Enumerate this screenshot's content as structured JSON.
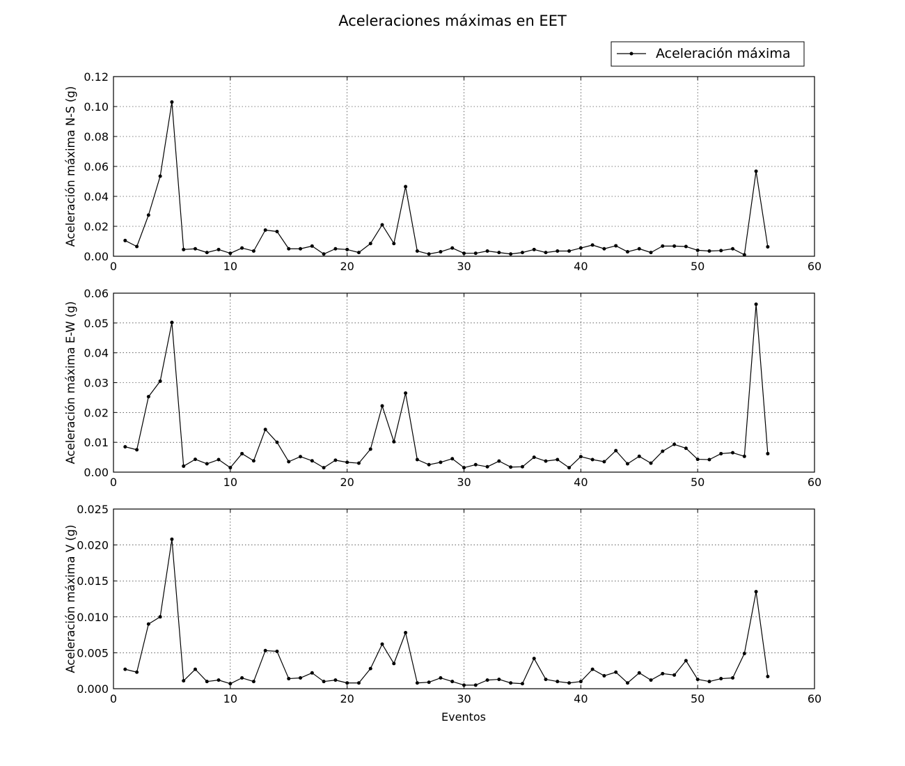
{
  "figure": {
    "title": "Aceleraciones máximas en EET",
    "xlabel": "Eventos",
    "legend": {
      "label": "Aceleración máxima",
      "placement": "top-right"
    },
    "line_color": "#000000"
  },
  "chart_data": [
    {
      "type": "line",
      "title": "",
      "xlabel": "",
      "ylabel": "Aceleración máxima N-S (g)",
      "xlim": [
        0,
        60
      ],
      "ylim": [
        0,
        0.12
      ],
      "xticks": [
        "0",
        "10",
        "20",
        "30",
        "40",
        "50",
        "60"
      ],
      "yticks": [
        "0.00",
        "0.02",
        "0.04",
        "0.06",
        "0.08",
        "0.10",
        "0.12"
      ],
      "grid": true,
      "series": [
        {
          "name": "Aceleración máxima",
          "x": [
            1,
            2,
            3,
            4,
            5,
            6,
            7,
            8,
            9,
            10,
            11,
            12,
            13,
            14,
            15,
            16,
            17,
            18,
            19,
            20,
            21,
            22,
            23,
            24,
            25,
            26,
            27,
            28,
            29,
            30,
            31,
            32,
            33,
            34,
            35,
            36,
            37,
            38,
            39,
            40,
            41,
            42,
            43,
            44,
            45,
            46,
            47,
            48,
            49,
            50,
            51,
            52,
            53,
            54,
            55,
            56
          ],
          "y": [
            0.0105,
            0.0065,
            0.0275,
            0.0535,
            0.103,
            0.0045,
            0.005,
            0.0025,
            0.0045,
            0.002,
            0.0055,
            0.0035,
            0.0175,
            0.0165,
            0.005,
            0.005,
            0.0068,
            0.0015,
            0.005,
            0.0045,
            0.0025,
            0.0085,
            0.021,
            0.0085,
            0.0465,
            0.0035,
            0.0015,
            0.003,
            0.0055,
            0.002,
            0.002,
            0.0035,
            0.0025,
            0.0015,
            0.0025,
            0.0045,
            0.0025,
            0.0035,
            0.0035,
            0.0055,
            0.0075,
            0.005,
            0.007,
            0.003,
            0.005,
            0.0025,
            0.0068,
            0.0068,
            0.0065,
            0.004,
            0.0035,
            0.0038,
            0.005,
            0.001,
            0.0568,
            0.0063
          ]
        }
      ]
    },
    {
      "type": "line",
      "title": "",
      "xlabel": "",
      "ylabel": "Aceleración máxima E-W (g)",
      "xlim": [
        0,
        60
      ],
      "ylim": [
        0,
        0.06
      ],
      "xticks": [
        "0",
        "10",
        "20",
        "30",
        "40",
        "50",
        "60"
      ],
      "yticks": [
        "0.00",
        "0.01",
        "0.02",
        "0.03",
        "0.04",
        "0.05",
        "0.06"
      ],
      "grid": true,
      "series": [
        {
          "name": "Aceleración máxima",
          "x": [
            1,
            2,
            3,
            4,
            5,
            6,
            7,
            8,
            9,
            10,
            11,
            12,
            13,
            14,
            15,
            16,
            17,
            18,
            19,
            20,
            21,
            22,
            23,
            24,
            25,
            26,
            27,
            28,
            29,
            30,
            31,
            32,
            33,
            34,
            35,
            36,
            37,
            38,
            39,
            40,
            41,
            42,
            43,
            44,
            45,
            46,
            47,
            48,
            49,
            50,
            51,
            52,
            53,
            54,
            55,
            56
          ],
          "y": [
            0.0085,
            0.0075,
            0.0253,
            0.0305,
            0.0502,
            0.002,
            0.0043,
            0.0028,
            0.0042,
            0.0015,
            0.0062,
            0.0038,
            0.0143,
            0.01,
            0.0035,
            0.0052,
            0.0038,
            0.0015,
            0.004,
            0.0033,
            0.003,
            0.0077,
            0.0222,
            0.0102,
            0.0265,
            0.0042,
            0.0025,
            0.0033,
            0.0045,
            0.0015,
            0.0025,
            0.0018,
            0.0037,
            0.0017,
            0.0018,
            0.005,
            0.0037,
            0.0042,
            0.0015,
            0.0052,
            0.0042,
            0.0035,
            0.0072,
            0.0028,
            0.0053,
            0.003,
            0.007,
            0.0093,
            0.008,
            0.0043,
            0.0042,
            0.0062,
            0.0065,
            0.0053,
            0.0563,
            0.0062
          ]
        }
      ]
    },
    {
      "type": "line",
      "title": "",
      "xlabel": "Eventos",
      "ylabel": "Aceleración máxima V (g)",
      "xlim": [
        0,
        60
      ],
      "ylim": [
        0,
        0.025
      ],
      "xticks": [
        "0",
        "10",
        "20",
        "30",
        "40",
        "50",
        "60"
      ],
      "yticks": [
        "0.000",
        "0.005",
        "0.010",
        "0.015",
        "0.020",
        "0.025"
      ],
      "grid": true,
      "series": [
        {
          "name": "Aceleración máxima",
          "x": [
            1,
            2,
            3,
            4,
            5,
            6,
            7,
            8,
            9,
            10,
            11,
            12,
            13,
            14,
            15,
            16,
            17,
            18,
            19,
            20,
            21,
            22,
            23,
            24,
            25,
            26,
            27,
            28,
            29,
            30,
            31,
            32,
            33,
            34,
            35,
            36,
            37,
            38,
            39,
            40,
            41,
            42,
            43,
            44,
            45,
            46,
            47,
            48,
            49,
            50,
            51,
            52,
            53,
            54,
            55,
            56
          ],
          "y": [
            0.0027,
            0.0023,
            0.009,
            0.01,
            0.0208,
            0.0011,
            0.0027,
            0.001,
            0.0012,
            0.0007,
            0.0015,
            0.001,
            0.0053,
            0.0052,
            0.0014,
            0.0015,
            0.0022,
            0.001,
            0.0012,
            0.0008,
            0.0008,
            0.0028,
            0.0062,
            0.0035,
            0.0078,
            0.0008,
            0.0009,
            0.0015,
            0.001,
            0.0005,
            0.0005,
            0.0012,
            0.0013,
            0.0008,
            0.0007,
            0.0042,
            0.0013,
            0.001,
            0.0008,
            0.001,
            0.0027,
            0.0018,
            0.0023,
            0.0008,
            0.0022,
            0.0012,
            0.0021,
            0.0019,
            0.0039,
            0.0013,
            0.001,
            0.0014,
            0.0015,
            0.0049,
            0.0135,
            0.0017
          ]
        }
      ]
    }
  ]
}
